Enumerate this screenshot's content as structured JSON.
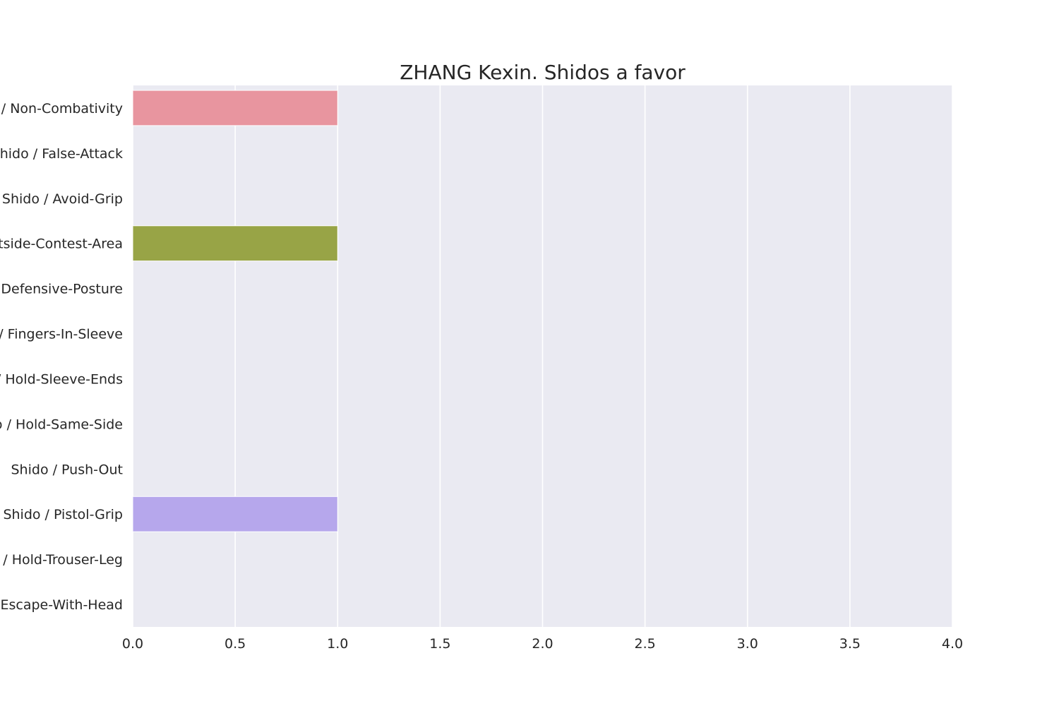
{
  "chart_data": {
    "type": "bar",
    "orientation": "horizontal",
    "title": "ZHANG Kexin. Shidos a favor",
    "xlabel": "",
    "ylabel": "",
    "xlim": [
      0,
      4
    ],
    "x_ticks": [
      "0.0",
      "0.5",
      "1.0",
      "1.5",
      "2.0",
      "2.5",
      "3.0",
      "3.5",
      "4.0"
    ],
    "categories": [
      "Shido / Non-Combativity",
      "Shido / False-Attack",
      "Shido / Avoid-Grip",
      "Shido / Outside-Contest-Area",
      "Shido / Defensive-Posture",
      "Shido / Fingers-In-Sleeve",
      "Shido / Hold-Sleeve-Ends",
      "Shido / Hold-Same-Side",
      "Shido / Push-Out",
      "Shido / Pistol-Grip",
      "Shido / Hold-Trouser-Leg",
      "Shido / Escape-With-Head"
    ],
    "values": [
      1,
      0,
      0,
      1,
      0,
      0,
      0,
      0,
      0,
      1,
      0,
      0
    ],
    "colors": [
      "#e8959f",
      "#e4a07a",
      "#d2a969",
      "#98a446",
      "#58ae5e",
      "#5bad93",
      "#5aaaa8",
      "#5da8c0",
      "#79a7e6",
      "#b6a7ec",
      "#e290e8",
      "#e691c4"
    ],
    "background": "#eaeaf2",
    "grid": true,
    "legend": "none"
  }
}
